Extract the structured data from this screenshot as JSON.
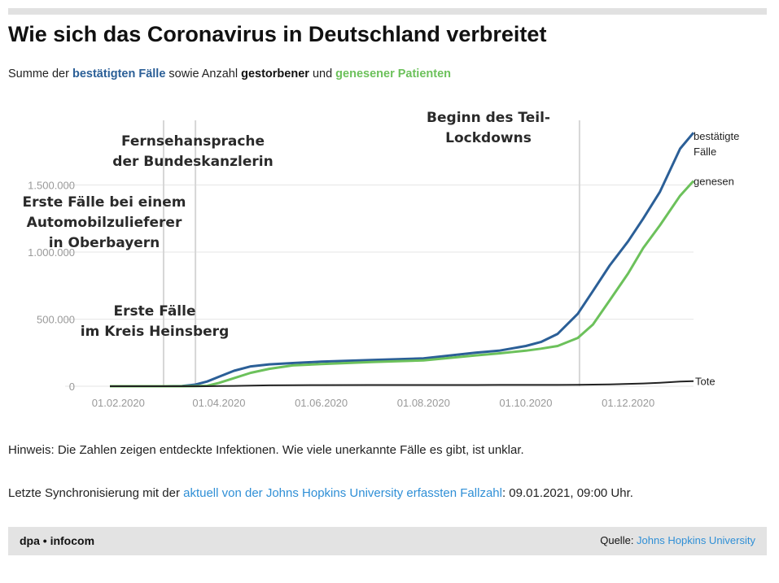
{
  "header": {
    "title": "Wie sich das Coronavirus in Deutschland verbreitet",
    "subtitle_prefix": "Summe der ",
    "subtitle_confirmed": "bestätigten Fälle",
    "subtitle_mid": " sowie Anzahl ",
    "subtitle_deaths": "gestorbener",
    "subtitle_and": " und ",
    "subtitle_recovered": "genesener Patienten"
  },
  "colors": {
    "confirmed": "#2b5f97",
    "recovered": "#6cc15b",
    "deaths": "#222222",
    "gridline": "#e6e6e6",
    "event_line": "#d6d6d6"
  },
  "annotations": [
    {
      "date": "2020-02-28",
      "lines": [
        "Erste Fälle bei einem",
        "Automobilzulieferer",
        "in Oberbayern"
      ]
    },
    {
      "date": "2020-02-28",
      "lines": [
        "Erste Fälle",
        "im Kreis Heinsberg"
      ]
    },
    {
      "date": "2020-03-18",
      "lines": [
        "Fernsehansprache",
        "der Bundeskanzlerin"
      ]
    },
    {
      "date": "2020-11-02",
      "lines": [
        "Beginn des Teil-",
        "Lockdowns"
      ]
    }
  ],
  "chart_data": {
    "type": "line",
    "x_unit": "date",
    "x_range": [
      "2020-01-10",
      "2021-01-09"
    ],
    "ylim": [
      0,
      2000000
    ],
    "grid": true,
    "y_ticks": [
      {
        "value": 0,
        "label": "0"
      },
      {
        "value": 500000,
        "label": "500.000"
      },
      {
        "value": 1000000,
        "label": "1.000.000"
      },
      {
        "value": 1500000,
        "label": "1.500.000"
      }
    ],
    "x_ticks": [
      {
        "value": "2020-02-01",
        "label": "01.02.2020"
      },
      {
        "value": "2020-04-01",
        "label": "01.04.2020"
      },
      {
        "value": "2020-06-01",
        "label": "01.06.2020"
      },
      {
        "value": "2020-08-01",
        "label": "01.08.2020"
      },
      {
        "value": "2020-10-01",
        "label": "01.10.2020"
      },
      {
        "value": "2020-12-01",
        "label": "01.12.2020"
      }
    ],
    "x": [
      "2020-01-27",
      "2020-02-28",
      "2020-03-10",
      "2020-03-18",
      "2020-03-25",
      "2020-04-01",
      "2020-04-10",
      "2020-04-20",
      "2020-05-01",
      "2020-05-15",
      "2020-06-01",
      "2020-07-01",
      "2020-08-01",
      "2020-09-01",
      "2020-09-15",
      "2020-10-01",
      "2020-10-10",
      "2020-10-20",
      "2020-11-01",
      "2020-11-10",
      "2020-11-20",
      "2020-12-01",
      "2020-12-10",
      "2020-12-20",
      "2021-01-01",
      "2021-01-09"
    ],
    "series": [
      {
        "name": "bestätigte Fälle",
        "color": "#2b5f97",
        "values": [
          0,
          20,
          1500,
          12000,
          35000,
          70000,
          115000,
          148000,
          163000,
          173000,
          183000,
          195000,
          208000,
          250000,
          265000,
          300000,
          330000,
          390000,
          540000,
          710000,
          900000,
          1080000,
          1250000,
          1450000,
          1770000,
          1890000
        ]
      },
      {
        "name": "genesen",
        "color": "#6cc15b",
        "values": [
          0,
          15,
          100,
          500,
          3000,
          25000,
          60000,
          100000,
          130000,
          155000,
          165000,
          180000,
          193000,
          230000,
          245000,
          265000,
          280000,
          300000,
          360000,
          460000,
          640000,
          840000,
          1030000,
          1200000,
          1420000,
          1530000
        ]
      },
      {
        "name": "Tote",
        "color": "#222222",
        "values": [
          0,
          0,
          2,
          26,
          206,
          930,
          2700,
          4600,
          6600,
          7900,
          8600,
          9100,
          9200,
          9300,
          9400,
          9600,
          9700,
          9900,
          10800,
          12200,
          14100,
          17600,
          20400,
          25600,
          34300,
          38000
        ]
      }
    ]
  },
  "notes": {
    "hint": "Hinweis: Die Zahlen zeigen entdeckte Infektionen. Wie viele unerkannte Fälle es gibt, ist unklar.",
    "sync_prefix": "Letzte Synchronisierung mit der ",
    "sync_link": "aktuell von der Johns Hopkins University erfassten Fallzahl",
    "sync_suffix": ": 09.01.2021, 09:00 Uhr."
  },
  "footer": {
    "brand": "dpa • infocom",
    "source_label": "Quelle: ",
    "source_link": "Johns Hopkins University"
  }
}
